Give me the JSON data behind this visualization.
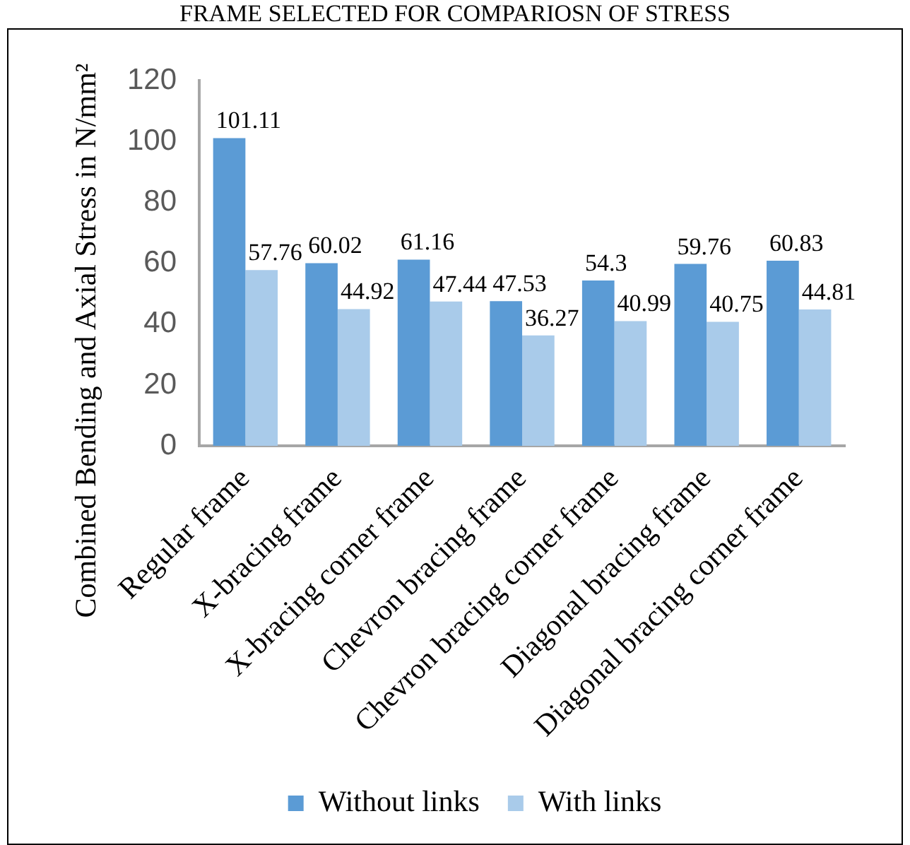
{
  "chart_data": {
    "type": "bar",
    "title": "FRAME SELECTED FOR COMPARIOSN OF STRESS",
    "ylabel": "Combined Bending and Axial Stress in N/mm²",
    "categories": [
      "Regular frame",
      "X-bracing frame",
      "X-bracing corner frame",
      "Chevron bracing frame",
      "Chevron bracing corner frame",
      "Diagonal bracing frame",
      "Diagonal bracing corner frame"
    ],
    "series": [
      {
        "name": "Without links",
        "color": "#5b9bd5",
        "values": [
          101.11,
          60.02,
          61.16,
          47.53,
          54.3,
          59.76,
          60.83
        ]
      },
      {
        "name": "With links",
        "color": "#a9cbea",
        "values": [
          57.76,
          44.92,
          47.44,
          36.27,
          40.99,
          40.75,
          44.81
        ]
      }
    ],
    "ylim": [
      0,
      120
    ],
    "yticks": [
      0,
      20,
      40,
      60,
      80,
      100,
      120
    ],
    "data_labels": true,
    "legend": "bottom",
    "grid": false
  }
}
